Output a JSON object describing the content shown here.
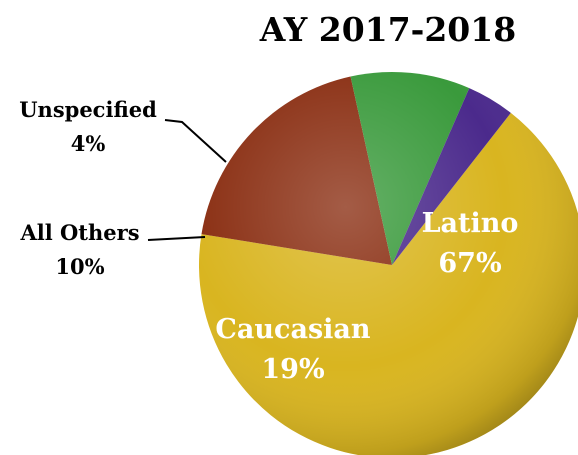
{
  "chart_data": {
    "type": "pie",
    "title": "AY 2017-2018",
    "slices": [
      {
        "label": "Latino",
        "value": 67,
        "display": "67%",
        "color": "#D9B520",
        "label_position": "inside"
      },
      {
        "label": "Caucasian",
        "value": 19,
        "display": "19%",
        "color": "#8A2E12",
        "label_position": "inside"
      },
      {
        "label": "All Others",
        "value": 10,
        "display": "10%",
        "color": "#3A9A3C",
        "label_position": "outside-left"
      },
      {
        "label": "Unspecified",
        "value": 4,
        "display": "4%",
        "color": "#4B2A8C",
        "label_position": "outside-left"
      }
    ]
  }
}
